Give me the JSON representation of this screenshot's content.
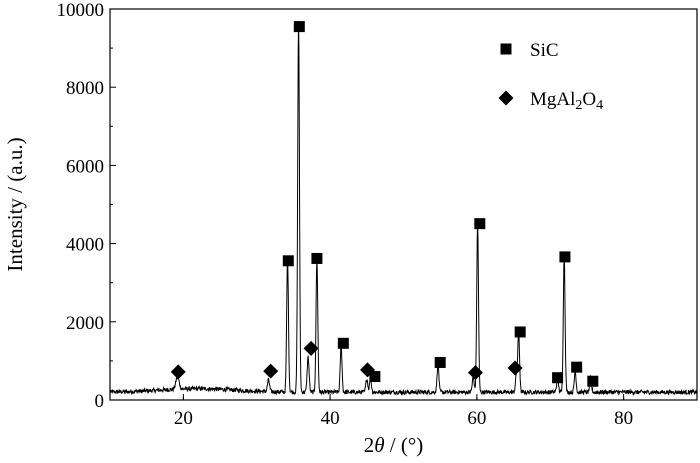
{
  "chart_data": {
    "type": "line",
    "title": "",
    "xlabel_parts": [
      "2",
      "θ",
      " / (°)"
    ],
    "ylabel": "Intensity / (a.u.)",
    "xlim": [
      10,
      90
    ],
    "ylim": [
      0,
      10000
    ],
    "x_ticks": [
      20,
      40,
      60,
      80
    ],
    "x_tick_labels": [
      "20",
      "40",
      "60",
      "80"
    ],
    "y_ticks": [
      0,
      2000,
      4000,
      6000,
      8000,
      10000
    ],
    "y_tick_labels": [
      "0",
      "2000",
      "4000",
      "6000",
      "8000",
      "10000"
    ],
    "grid": false,
    "legend_position": "top-right",
    "legend": [
      {
        "marker": "square",
        "label_parts": [
          "SiC"
        ]
      },
      {
        "marker": "diamond",
        "label_parts": [
          "MgAl",
          "2",
          "O",
          "4"
        ]
      }
    ],
    "series": [
      {
        "baseline": 200,
        "peaks": [
          {
            "x": 19.2,
            "y": 320,
            "w": 0.22
          },
          {
            "x": 31.6,
            "y": 300,
            "w": 0.14
          },
          {
            "x": 34.2,
            "y": 3400,
            "w": 0.12
          },
          {
            "x": 35.7,
            "y": 9500,
            "w": 0.12
          },
          {
            "x": 37.0,
            "y": 900,
            "w": 0.13
          },
          {
            "x": 38.2,
            "y": 3400,
            "w": 0.12
          },
          {
            "x": 41.5,
            "y": 1200,
            "w": 0.12
          },
          {
            "x": 45.0,
            "y": 350,
            "w": 0.13
          },
          {
            "x": 45.5,
            "y": 380,
            "w": 0.12
          },
          {
            "x": 54.7,
            "y": 750,
            "w": 0.12
          },
          {
            "x": 59.5,
            "y": 380,
            "w": 0.13
          },
          {
            "x": 60.1,
            "y": 4300,
            "w": 0.12
          },
          {
            "x": 65.4,
            "y": 450,
            "w": 0.13
          },
          {
            "x": 65.7,
            "y": 1500,
            "w": 0.12
          },
          {
            "x": 71.0,
            "y": 330,
            "w": 0.13
          },
          {
            "x": 71.9,
            "y": 3500,
            "w": 0.12
          },
          {
            "x": 73.4,
            "y": 550,
            "w": 0.12
          },
          {
            "x": 75.5,
            "y": 380,
            "w": 0.12
          }
        ]
      }
    ],
    "markers": [
      {
        "type": "square",
        "x": 35.8,
        "y": 9550
      },
      {
        "type": "square",
        "x": 34.3,
        "y": 3560
      },
      {
        "type": "square",
        "x": 38.2,
        "y": 3620
      },
      {
        "type": "square",
        "x": 41.8,
        "y": 1450
      },
      {
        "type": "square",
        "x": 46.1,
        "y": 600
      },
      {
        "type": "square",
        "x": 55.0,
        "y": 960
      },
      {
        "type": "square",
        "x": 60.4,
        "y": 4510
      },
      {
        "type": "square",
        "x": 65.9,
        "y": 1740
      },
      {
        "type": "square",
        "x": 71.0,
        "y": 570
      },
      {
        "type": "square",
        "x": 72.0,
        "y": 3660
      },
      {
        "type": "square",
        "x": 73.6,
        "y": 840
      },
      {
        "type": "square",
        "x": 75.8,
        "y": 480
      },
      {
        "type": "diamond",
        "x": 19.3,
        "y": 720
      },
      {
        "type": "diamond",
        "x": 31.9,
        "y": 740
      },
      {
        "type": "diamond",
        "x": 37.4,
        "y": 1320
      },
      {
        "type": "diamond",
        "x": 45.1,
        "y": 770
      },
      {
        "type": "diamond",
        "x": 59.8,
        "y": 700
      },
      {
        "type": "diamond",
        "x": 65.2,
        "y": 820
      }
    ]
  }
}
